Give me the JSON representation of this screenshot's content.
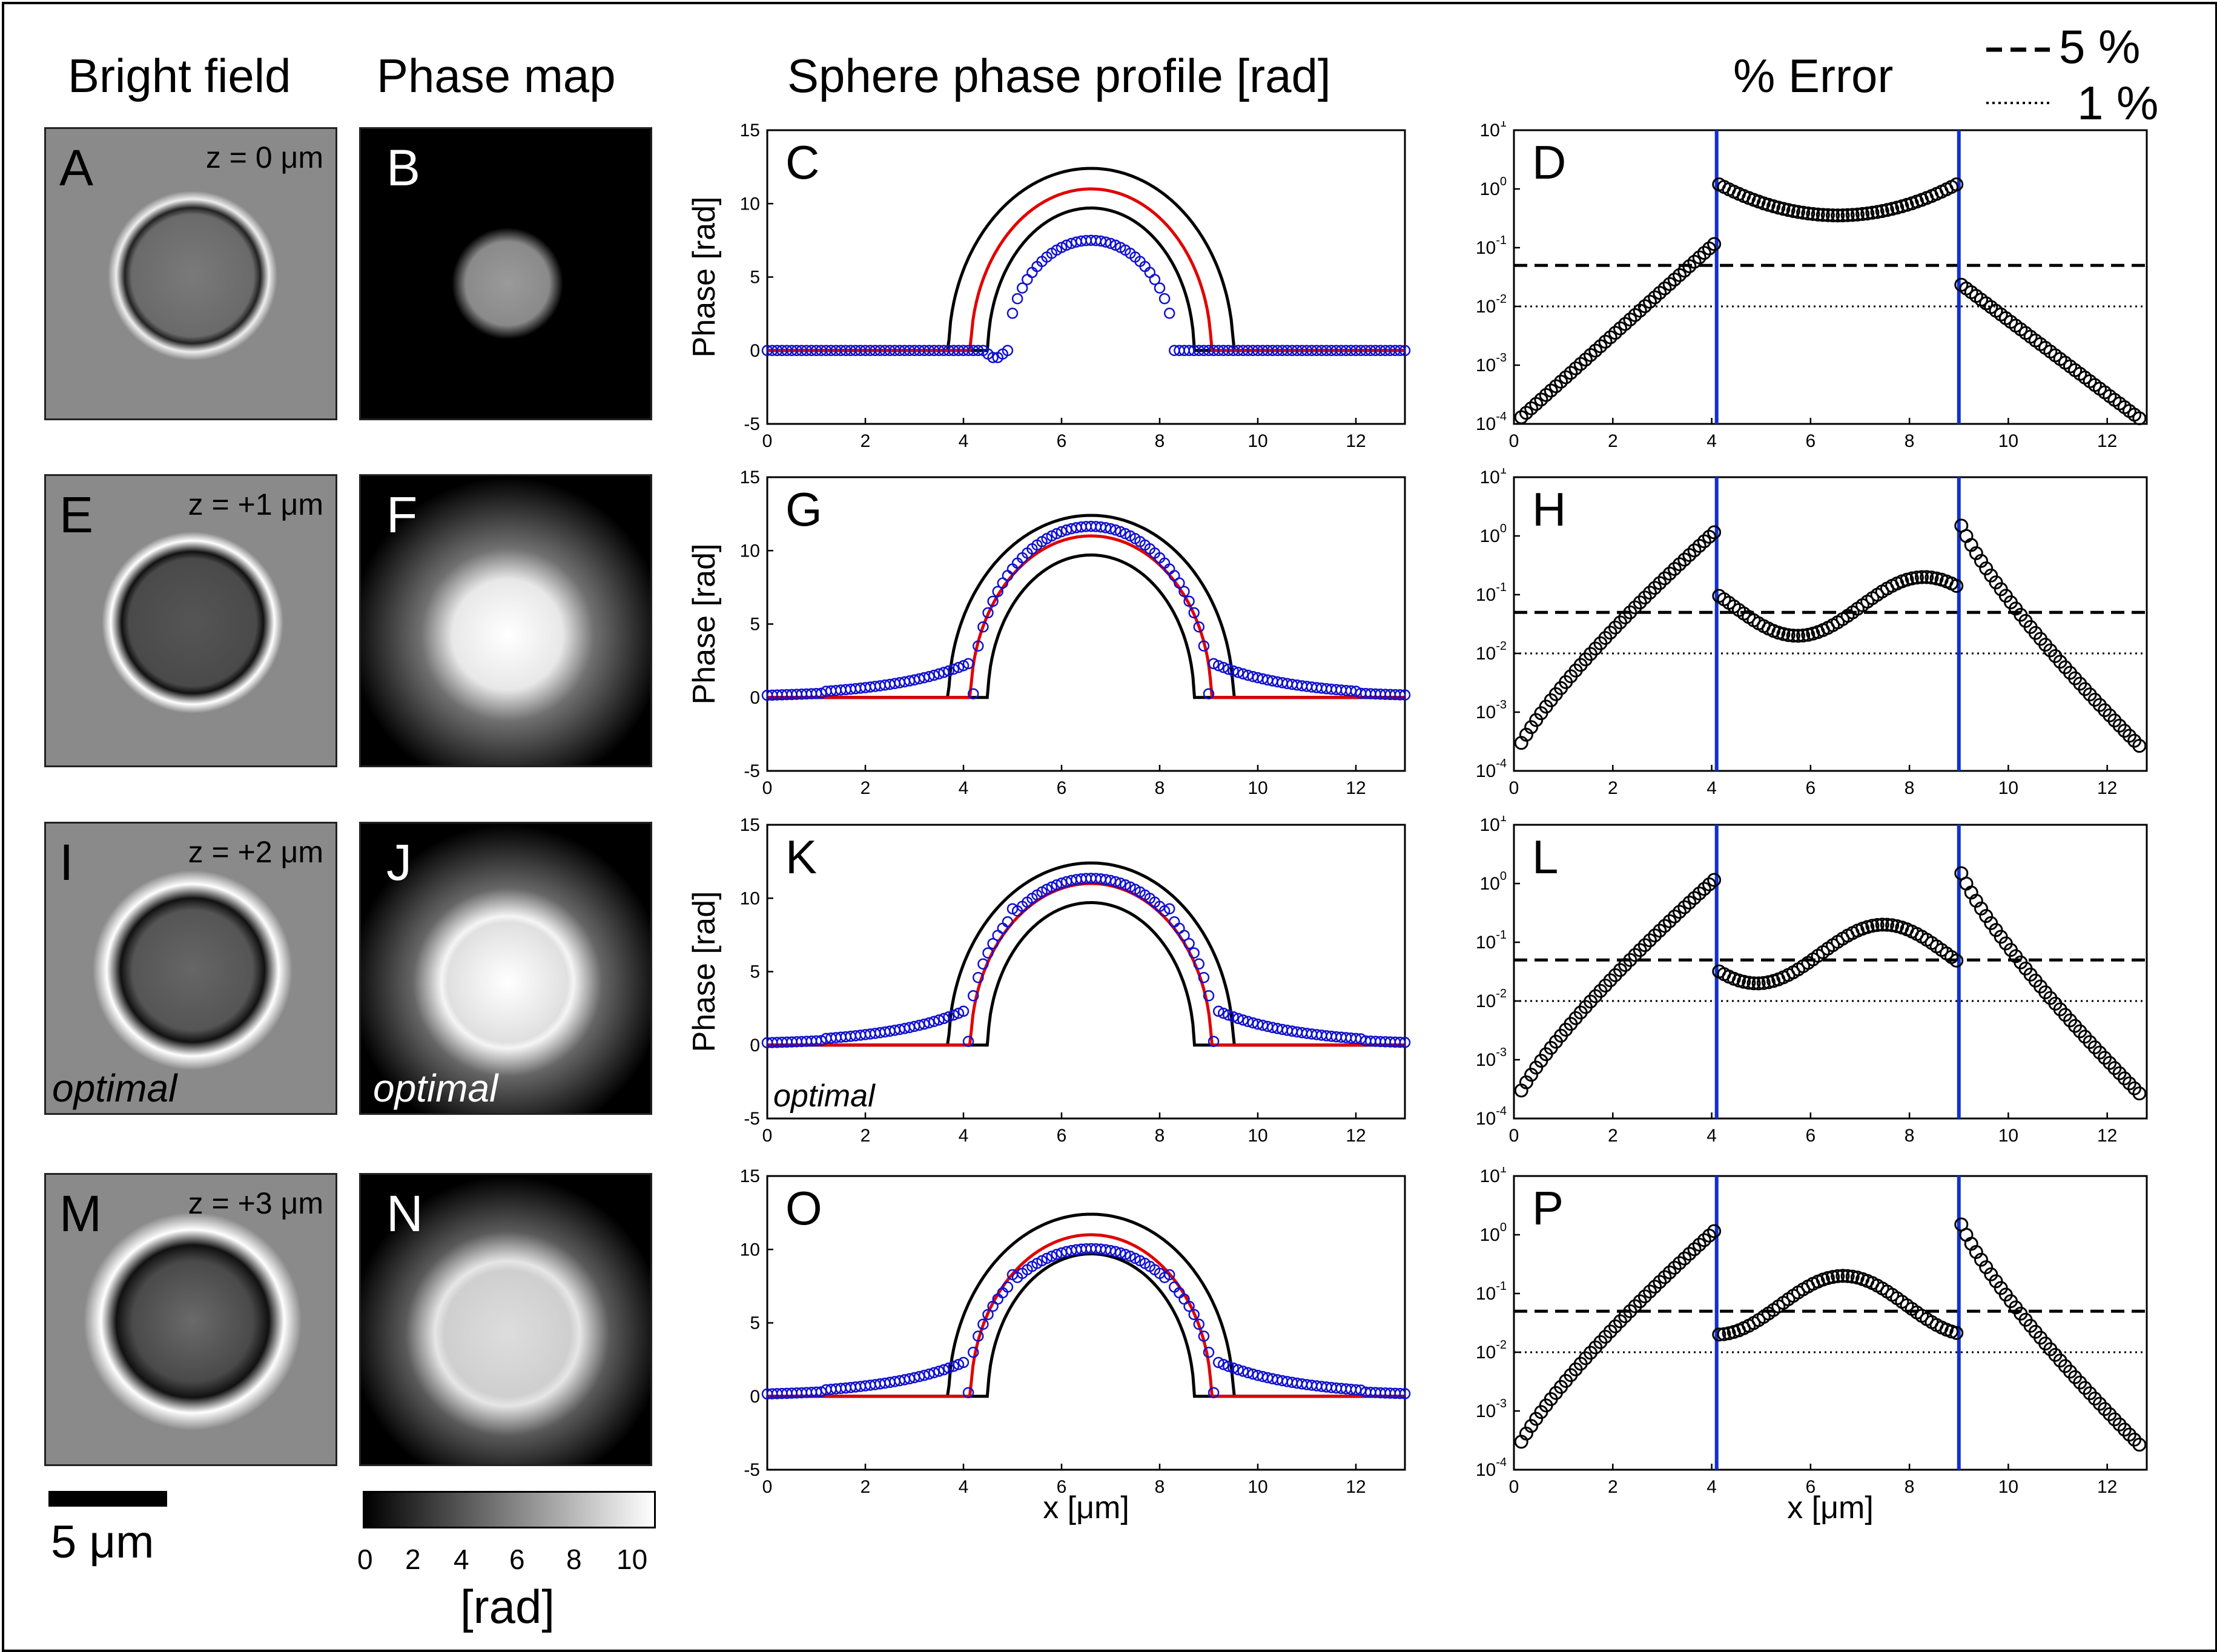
{
  "column_headers": {
    "bright_field": "Bright field",
    "phase_map": "Phase map",
    "profile": "Sphere phase profile [rad]",
    "error": "% Error"
  },
  "legend": {
    "dashed": "5 %",
    "dotted": "1 %"
  },
  "rows": [
    {
      "bf_letter": "A",
      "pm_letter": "B",
      "profile_letter": "C",
      "error_letter": "D",
      "z_label": "z = 0 μm",
      "bf_tag": "",
      "pm_tag": "",
      "profile_tag": ""
    },
    {
      "bf_letter": "E",
      "pm_letter": "F",
      "profile_letter": "G",
      "error_letter": "H",
      "z_label": "z = +1 μm",
      "bf_tag": "",
      "pm_tag": "",
      "profile_tag": ""
    },
    {
      "bf_letter": "I",
      "pm_letter": "J",
      "profile_letter": "K",
      "error_letter": "L",
      "z_label": "z = +2 μm",
      "bf_tag": "optimal",
      "pm_tag": "optimal",
      "profile_tag": "optimal"
    },
    {
      "bf_letter": "M",
      "pm_letter": "N",
      "profile_letter": "O",
      "error_letter": "P",
      "z_label": "z = +3 μm",
      "bf_tag": "",
      "pm_tag": "",
      "profile_tag": ""
    }
  ],
  "scale_bar": {
    "label": "5 μm"
  },
  "colorbar": {
    "ticks": [
      "0",
      "2",
      "4",
      "6",
      "8",
      "10"
    ],
    "unit": "[rad]"
  },
  "colors": {
    "theory": "#e00000",
    "bounds": "#000000",
    "measured": "#1010d0",
    "boundary_lines": "#1030d0"
  },
  "chart_data": [
    {
      "type": "line",
      "title": "Sphere phase profile [rad]",
      "xlabel": "x [μm]",
      "ylabel": "Phase [rad]",
      "xlim": [
        0,
        13
      ],
      "ylim": [
        -5,
        15
      ],
      "xticks": [
        0,
        2,
        4,
        6,
        8,
        10,
        12
      ],
      "yticks": [
        -5,
        0,
        5,
        10,
        15
      ],
      "sphere": {
        "center": 6.6,
        "radius": 2.45,
        "peak": 11.0,
        "upper_radius": 2.9,
        "upper_peak": 12.4,
        "lower_radius": 2.1,
        "lower_peak": 9.7
      },
      "series": [
        {
          "name": "theory",
          "style": "red-line"
        },
        {
          "name": "bounds",
          "style": "black-lines"
        },
        {
          "name": "measured z=0",
          "style": "blue-circles",
          "peak": 7.5,
          "halfwidth": 1.7,
          "dip": -0.6
        },
        {
          "name": "measured z=+1",
          "style": "blue-circles",
          "peak": 11.4,
          "halfwidth": 2.4,
          "tail": 1.8
        },
        {
          "name": "measured z=+2",
          "style": "blue-circles",
          "peak": 11.1,
          "halfwidth": 2.5,
          "tail": 1.8
        },
        {
          "name": "measured z=+3",
          "style": "blue-circles",
          "peak": 9.8,
          "halfwidth": 2.5,
          "tail": 1.8
        }
      ]
    },
    {
      "type": "scatter",
      "title": "% Error",
      "xlabel": "x [μm]",
      "yscale": "log",
      "xlim": [
        0,
        12.8
      ],
      "ylim_exp": [
        -4,
        1
      ],
      "xticks": [
        0,
        2,
        4,
        6,
        8,
        10,
        12
      ],
      "thresholds": [
        0.05,
        0.01
      ],
      "boundaries_x": [
        4.1,
        9.0
      ],
      "series": [
        {
          "name": "error z=0",
          "style": "black-circles"
        },
        {
          "name": "error z=+1",
          "style": "black-circles"
        },
        {
          "name": "error z=+2",
          "style": "black-circles"
        },
        {
          "name": "error z=+3",
          "style": "black-circles"
        }
      ]
    }
  ]
}
